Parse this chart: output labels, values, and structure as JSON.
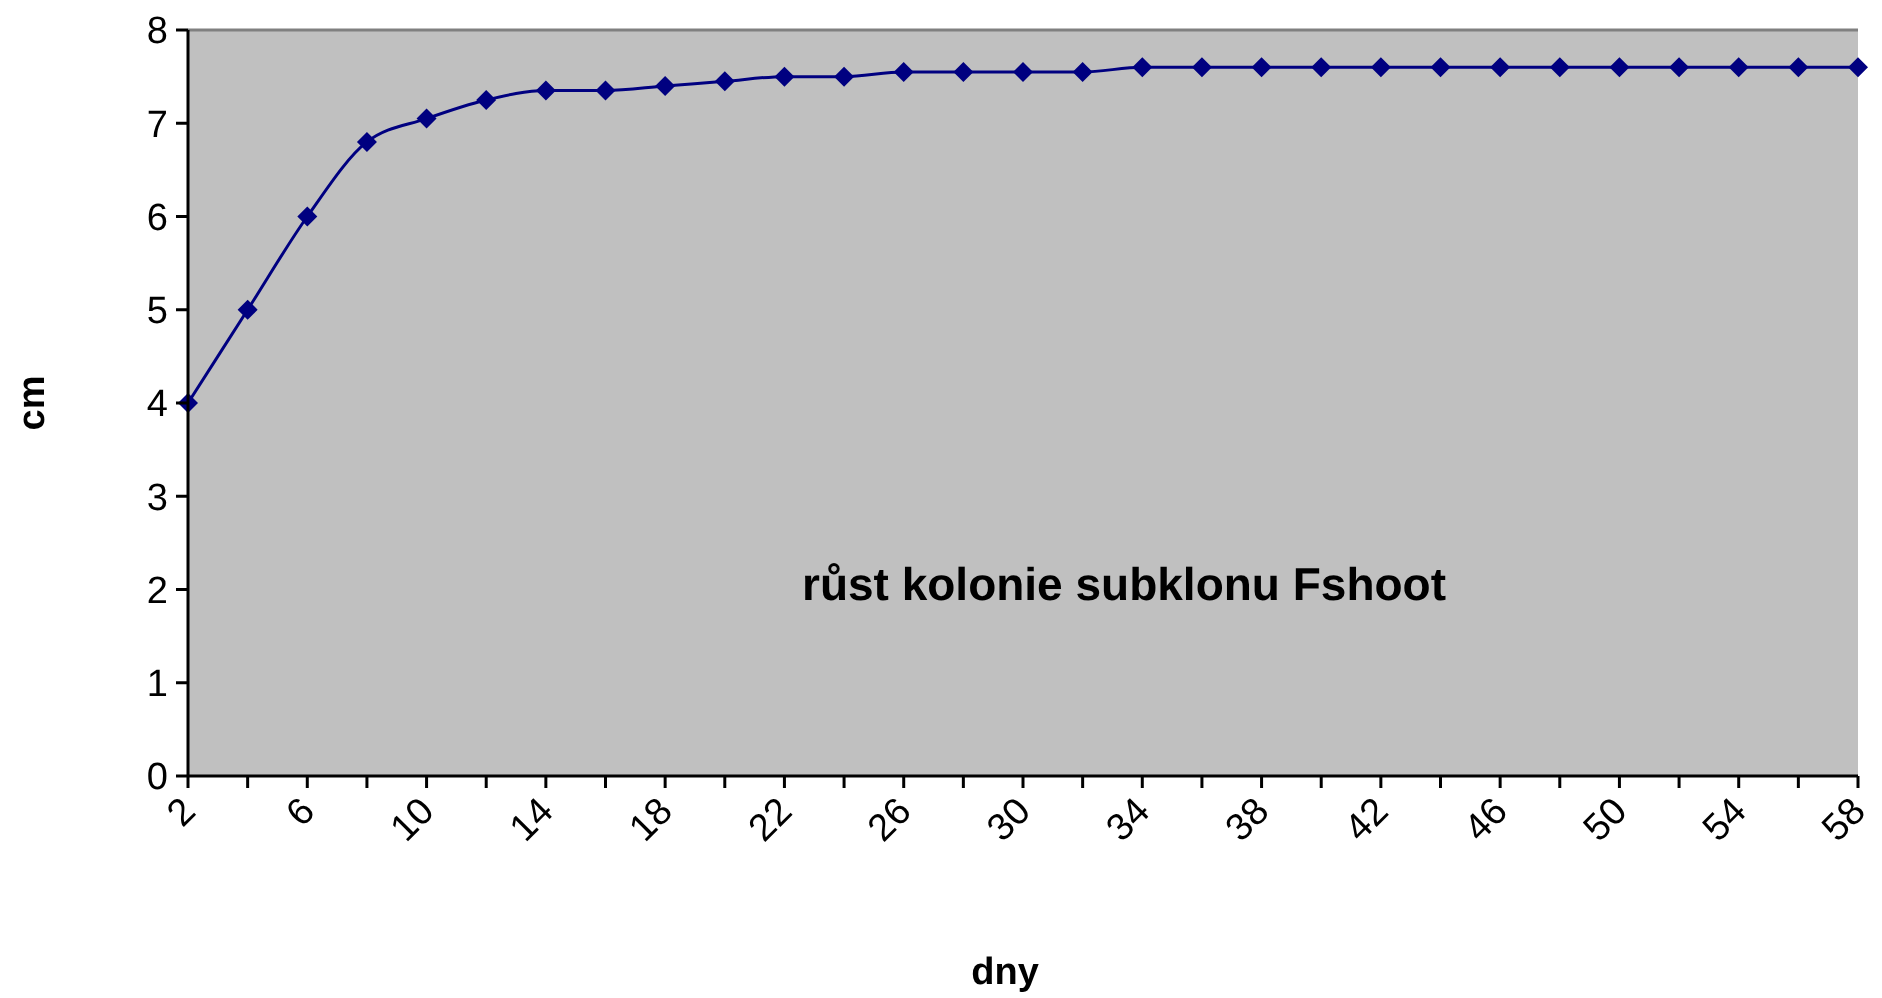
{
  "chart_data": {
    "type": "line",
    "xlabel": "dny",
    "ylabel": "cm",
    "annotations": [
      "růst kolonie subklonu Fshoot"
    ],
    "x": [
      2,
      4,
      6,
      8,
      10,
      12,
      14,
      16,
      18,
      20,
      22,
      24,
      26,
      28,
      30,
      32,
      34,
      36,
      38,
      40,
      42,
      44,
      46,
      48,
      50,
      52,
      54,
      56,
      58
    ],
    "series": [
      {
        "color": "#000080",
        "values": [
          4,
          5,
          6,
          6.8,
          7.05,
          7.25,
          7.35,
          7.35,
          7.4,
          7.45,
          7.5,
          7.5,
          7.55,
          7.55,
          7.55,
          7.55,
          7.6,
          7.6,
          7.6,
          7.6,
          7.6,
          7.6,
          7.6,
          7.6,
          7.6,
          7.6,
          7.6,
          7.6,
          7.6
        ]
      }
    ],
    "xlim": [
      2,
      58
    ],
    "xticks": [
      2,
      {
        "value": 4,
        "label": null
      },
      6,
      {
        "value": 8,
        "label": null
      },
      10,
      {
        "value": 12,
        "label": null
      },
      14,
      {
        "value": 16,
        "label": null
      },
      18,
      {
        "value": 20,
        "label": null
      },
      22,
      {
        "value": 24,
        "label": null
      },
      26,
      {
        "value": 28,
        "label": null
      },
      30,
      {
        "value": 32,
        "label": null
      },
      34,
      {
        "value": 36,
        "label": null
      },
      38,
      {
        "value": 40,
        "label": null
      },
      42,
      {
        "value": 44,
        "label": null
      },
      46,
      {
        "value": 48,
        "label": null
      },
      50,
      {
        "value": 52,
        "label": null
      },
      54,
      {
        "value": 56,
        "label": null
      },
      58
    ],
    "ylim": [
      0,
      8
    ],
    "yticks": [
      0,
      1,
      2,
      3,
      4,
      5,
      6,
      7,
      8
    ],
    "grid": false,
    "marker": "diamond",
    "line_style": "solid"
  }
}
